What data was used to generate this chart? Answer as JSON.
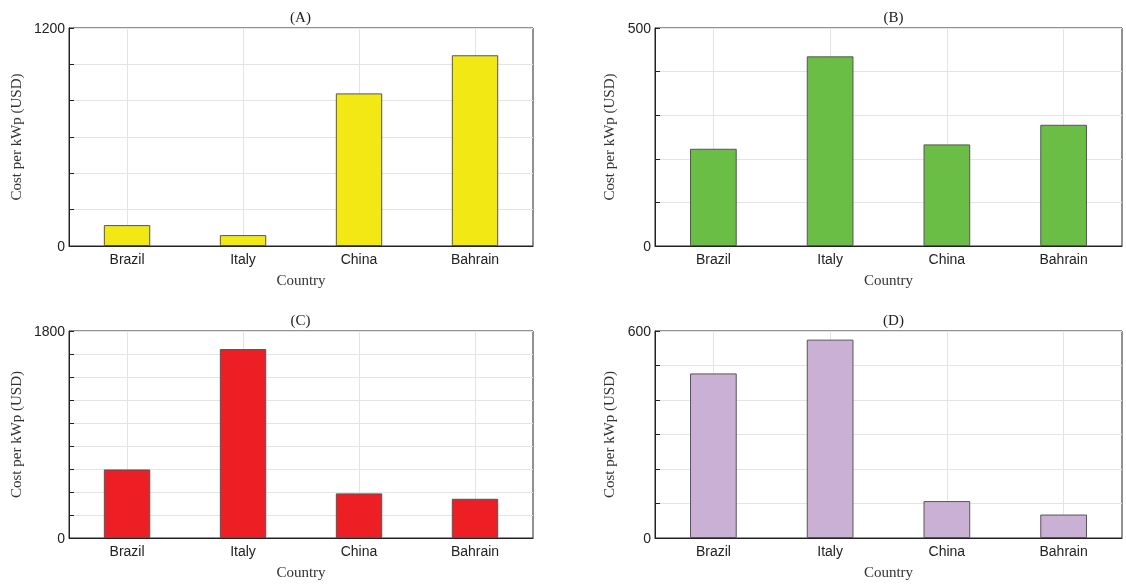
{
  "chart_data": [
    {
      "type": "bar",
      "title": "(A)",
      "xlabel": "Country",
      "ylabel": "Cost per kWp (USD)",
      "categories": [
        "Brazil",
        "Italy",
        "China",
        "Bahrain"
      ],
      "values": [
        115,
        60,
        840,
        1050
      ],
      "color": "#f2e814",
      "ylim": [
        0,
        1200
      ],
      "yticks": [
        0,
        {
          "value": 200,
          "label": null
        },
        {
          "value": 400,
          "label": null
        },
        {
          "value": 600,
          "label": null
        },
        {
          "value": 800,
          "label": null
        },
        {
          "value": 1000,
          "label": null
        },
        1200
      ],
      "grid": true
    },
    {
      "type": "bar",
      "title": "(B)",
      "xlabel": "Country",
      "ylabel": "Cost per kWp (USD)",
      "categories": [
        "Brazil",
        "Italy",
        "China",
        "Bahrain"
      ],
      "values": [
        223,
        435,
        233,
        278
      ],
      "color": "#6abd45",
      "ylim": [
        0,
        500
      ],
      "yticks": [
        0,
        {
          "value": 100,
          "label": null
        },
        {
          "value": 200,
          "label": null
        },
        {
          "value": 300,
          "label": null
        },
        {
          "value": 400,
          "label": null
        },
        500
      ],
      "grid": true
    },
    {
      "type": "bar",
      "title": "(C)",
      "xlabel": "Country",
      "ylabel": "Cost per kWp (USD)",
      "categories": [
        "Brazil",
        "Italy",
        "China",
        "Bahrain"
      ],
      "values": [
        596,
        1643,
        388,
        341
      ],
      "color": "#ed1f24",
      "ylim": [
        0,
        1800
      ],
      "yticks": [
        0,
        {
          "value": 200,
          "label": null
        },
        {
          "value": 400,
          "label": null
        },
        {
          "value": 600,
          "label": null
        },
        {
          "value": 800,
          "label": null
        },
        {
          "value": 1000,
          "label": null
        },
        {
          "value": 1200,
          "label": null
        },
        {
          "value": 1400,
          "label": null
        },
        {
          "value": 1600,
          "label": null
        },
        1800
      ],
      "grid": true
    },
    {
      "type": "bar",
      "title": "(D)",
      "xlabel": "Country",
      "ylabel": "Cost per kWp (USD)",
      "categories": [
        "Brazil",
        "Italy",
        "China",
        "Bahrain"
      ],
      "values": [
        477,
        575,
        107,
        68
      ],
      "color": "#cbb0d5",
      "ylim": [
        0,
        600
      ],
      "yticks": [
        0,
        {
          "value": 100,
          "label": null
        },
        {
          "value": 200,
          "label": null
        },
        {
          "value": 300,
          "label": null
        },
        {
          "value": 400,
          "label": null
        },
        {
          "value": 500,
          "label": null
        },
        600
      ],
      "grid": true
    }
  ]
}
